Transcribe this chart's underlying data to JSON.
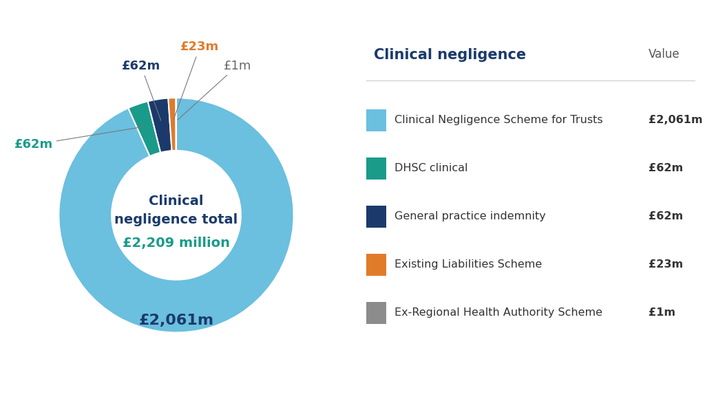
{
  "values": [
    2061,
    62,
    62,
    23,
    1
  ],
  "colors": [
    "#6BBFDF",
    "#1A9B8A",
    "#1B3A6B",
    "#E07B2A",
    "#8C8C8C"
  ],
  "labels": [
    "Clinical Negligence Scheme for Trusts",
    "DHSC clinical",
    "General practice indemnity",
    "Existing Liabilities Scheme",
    "Ex-Regional Health Authority Scheme"
  ],
  "slice_annotations": [
    {
      "text": "£2,061m",
      "color": "#1B3A6B",
      "fontsize": 16,
      "fontweight": "bold"
    },
    {
      "text": "£62m",
      "color": "#1A9B8A",
      "fontsize": 13,
      "fontweight": "bold"
    },
    {
      "text": "£62m",
      "color": "#1B3A6B",
      "fontsize": 13,
      "fontweight": "bold"
    },
    {
      "text": "£23m",
      "color": "#E07B2A",
      "fontsize": 13,
      "fontweight": "bold"
    },
    {
      "text": "£1m",
      "color": "#666666",
      "fontsize": 13,
      "fontweight": "normal"
    }
  ],
  "center_text_line1": "Clinical",
  "center_text_line2": "negligence total",
  "center_text_line3": "£2,209 million",
  "center_color1": "#1B3A6B",
  "center_color2": "#1A9B8A",
  "legend_title": "Clinical negligence",
  "legend_value_header": "Value",
  "background_color": "#FFFFFF",
  "legend_values": [
    "£2,061m",
    "£62m",
    "£62m",
    "£23m",
    "£1m"
  ]
}
